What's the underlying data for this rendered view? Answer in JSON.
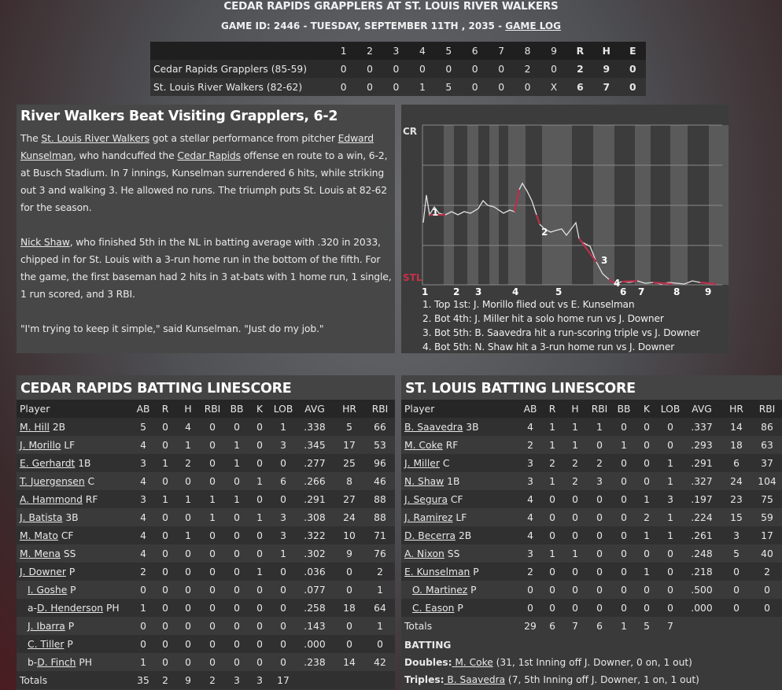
{
  "header": {
    "title": "CEDAR RAPIDS GRAPPLERS AT ST. LOUIS RIVER WALKERS",
    "subtitle": "GAME ID: 2446 - TUESDAY, SEPTEMBER 11TH , 2035 - ",
    "game_log_link": "GAME LOG"
  },
  "linescore": {
    "innings": [
      "1",
      "2",
      "3",
      "4",
      "5",
      "6",
      "7",
      "8",
      "9",
      "R",
      "H",
      "E"
    ],
    "rows": [
      {
        "team": "Cedar Rapids Grapplers (85-59)",
        "cells": [
          "0",
          "0",
          "0",
          "0",
          "0",
          "0",
          "0",
          "2",
          "0",
          "2",
          "9",
          "0"
        ]
      },
      {
        "team": "St. Louis River Walkers (82-62)",
        "cells": [
          "0",
          "0",
          "0",
          "1",
          "5",
          "0",
          "0",
          "0",
          "X",
          "6",
          "7",
          "0"
        ]
      }
    ]
  },
  "recap": {
    "headline": "River Walkers Beat Visiting Grapplers, 6-2",
    "p1": [
      {
        "t": "The "
      },
      {
        "t": "St. Louis River Walkers",
        "u": true
      },
      {
        "t": " got a stellar performance from pitcher "
      },
      {
        "t": "Edward Kunselman",
        "u": true
      },
      {
        "t": ", who handcuffed the "
      },
      {
        "t": "Cedar Rapids",
        "u": true
      },
      {
        "t": " offense en route to a win, 6-2, at Busch Stadium. In 7 innings, Kunselman surrendered 6 hits, while striking out 3 and walking 3. He allowed no runs. The triumph puts St. Louis at 82-62 for the season."
      }
    ],
    "p2": [
      {
        "t": "Nick Shaw",
        "u": true
      },
      {
        "t": ", who finished 5th in the NL in batting average with .320 in 2033, chipped in for St. Louis with a 3-run home run in the bottom of the fifth. For the game, the first baseman had 2 hits in 3 at-bats with 1 home run, 1 single, 1 run scored, and 3 RBI."
      }
    ],
    "p3": [
      {
        "t": "\"I'm trying to keep it simple,\" said Kunselman. \"Just do my job.\""
      }
    ]
  },
  "win_prob": {
    "top_label": "CR",
    "bottom_label": "STL",
    "innings": [
      "1",
      "2",
      "3",
      "4",
      "5",
      "6",
      "7",
      "8",
      "9"
    ],
    "markers": [
      "1",
      "2",
      "3",
      "4"
    ],
    "colors": {
      "home_line": "#b8304a",
      "away_line": "#e0e0e0"
    },
    "plays": [
      "1. Top 1st: J. Morillo flied out vs E. Kunselman",
      "2. Bot 4th: J. Miller hit a solo home run vs J. Downer",
      "3. Bot 5th: B. Saavedra hit a run-scoring triple vs J. Downer",
      "4. Bot 5th: N. Shaw hit a 3-run home run vs J. Downer"
    ]
  },
  "cr_batting": {
    "title": "CEDAR RAPIDS BATTING LINESCORE",
    "columns": [
      "Player",
      "AB",
      "R",
      "H",
      "RBI",
      "BB",
      "K",
      "LOB",
      "AVG",
      "HR",
      "RBI"
    ],
    "rows": [
      {
        "pre": "",
        "name": "M. Hill",
        "pos": " 2B",
        "ind": 0,
        "s": [
          "5",
          "0",
          "4",
          "0",
          "0",
          "0",
          "1",
          ".338",
          "5",
          "66"
        ]
      },
      {
        "pre": "",
        "name": "J. Morillo",
        "pos": " LF",
        "ind": 0,
        "s": [
          "4",
          "0",
          "1",
          "0",
          "1",
          "0",
          "3",
          ".345",
          "17",
          "53"
        ]
      },
      {
        "pre": "",
        "name": "E. Gerhardt",
        "pos": " 1B",
        "ind": 0,
        "s": [
          "3",
          "1",
          "2",
          "0",
          "1",
          "0",
          "0",
          ".277",
          "25",
          "96"
        ]
      },
      {
        "pre": "",
        "name": "T. Juergensen",
        "pos": " C",
        "ind": 0,
        "s": [
          "4",
          "0",
          "0",
          "0",
          "0",
          "1",
          "6",
          ".266",
          "8",
          "46"
        ]
      },
      {
        "pre": "",
        "name": "A. Hammond",
        "pos": " RF",
        "ind": 0,
        "s": [
          "3",
          "1",
          "1",
          "1",
          "1",
          "0",
          "0",
          ".291",
          "27",
          "88"
        ]
      },
      {
        "pre": "",
        "name": "J. Batista",
        "pos": " 3B",
        "ind": 0,
        "s": [
          "4",
          "0",
          "0",
          "1",
          "0",
          "1",
          "3",
          ".308",
          "24",
          "88"
        ]
      },
      {
        "pre": "",
        "name": "M. Mato",
        "pos": " CF",
        "ind": 0,
        "s": [
          "4",
          "0",
          "1",
          "0",
          "0",
          "0",
          "3",
          ".322",
          "10",
          "71"
        ]
      },
      {
        "pre": "",
        "name": "M. Mena",
        "pos": " SS",
        "ind": 0,
        "s": [
          "4",
          "0",
          "0",
          "0",
          "0",
          "0",
          "1",
          ".302",
          "9",
          "76"
        ]
      },
      {
        "pre": "",
        "name": "J. Downer",
        "pos": " P",
        "ind": 0,
        "s": [
          "2",
          "0",
          "0",
          "0",
          "0",
          "1",
          "0",
          ".036",
          "0",
          "2"
        ]
      },
      {
        "pre": "",
        "name": "I. Goshe",
        "pos": " P",
        "ind": 1,
        "s": [
          "0",
          "0",
          "0",
          "0",
          "0",
          "0",
          "0",
          ".077",
          "0",
          "1"
        ]
      },
      {
        "pre": "a-",
        "name": "D. Henderson",
        "pos": " PH",
        "ind": 1,
        "s": [
          "1",
          "0",
          "0",
          "0",
          "0",
          "0",
          "0",
          ".258",
          "18",
          "64"
        ]
      },
      {
        "pre": "",
        "name": "J. Ibarra",
        "pos": " P",
        "ind": 1,
        "s": [
          "0",
          "0",
          "0",
          "0",
          "0",
          "0",
          "0",
          ".143",
          "0",
          "1"
        ]
      },
      {
        "pre": "",
        "name": "C. Tiller",
        "pos": " P",
        "ind": 1,
        "s": [
          "0",
          "0",
          "0",
          "0",
          "0",
          "0",
          "0",
          ".000",
          "0",
          "0"
        ]
      },
      {
        "pre": "b-",
        "name": "D. Finch",
        "pos": " PH",
        "ind": 1,
        "s": [
          "1",
          "0",
          "0",
          "0",
          "0",
          "0",
          "0",
          ".238",
          "14",
          "42"
        ]
      }
    ],
    "totals": {
      "label": "Totals",
      "s": [
        "35",
        "2",
        "9",
        "2",
        "3",
        "3",
        "17",
        "",
        "",
        ""
      ]
    }
  },
  "stl_batting": {
    "title": "ST. LOUIS BATTING LINESCORE",
    "columns": [
      "Player",
      "AB",
      "R",
      "H",
      "RBI",
      "BB",
      "K",
      "LOB",
      "AVG",
      "HR",
      "RBI"
    ],
    "rows": [
      {
        "pre": "",
        "name": "B. Saavedra",
        "pos": " 3B",
        "ind": 0,
        "s": [
          "4",
          "1",
          "1",
          "1",
          "0",
          "0",
          "0",
          ".337",
          "14",
          "86"
        ]
      },
      {
        "pre": "",
        "name": "M. Coke",
        "pos": " RF",
        "ind": 0,
        "s": [
          "2",
          "1",
          "1",
          "0",
          "1",
          "0",
          "0",
          ".293",
          "18",
          "63"
        ]
      },
      {
        "pre": "",
        "name": "J. Miller",
        "pos": " C",
        "ind": 0,
        "s": [
          "3",
          "2",
          "2",
          "2",
          "0",
          "0",
          "1",
          ".291",
          "6",
          "37"
        ]
      },
      {
        "pre": "",
        "name": "N. Shaw",
        "pos": " 1B",
        "ind": 0,
        "s": [
          "3",
          "1",
          "2",
          "3",
          "0",
          "0",
          "1",
          ".327",
          "24",
          "104"
        ]
      },
      {
        "pre": "",
        "name": "J. Segura",
        "pos": " CF",
        "ind": 0,
        "s": [
          "4",
          "0",
          "0",
          "0",
          "0",
          "1",
          "3",
          ".197",
          "23",
          "75"
        ]
      },
      {
        "pre": "",
        "name": "J. Ramirez",
        "pos": " LF",
        "ind": 0,
        "s": [
          "4",
          "0",
          "0",
          "0",
          "0",
          "2",
          "1",
          ".224",
          "15",
          "59"
        ]
      },
      {
        "pre": "",
        "name": "D. Becerra",
        "pos": " 2B",
        "ind": 0,
        "s": [
          "4",
          "0",
          "0",
          "0",
          "0",
          "1",
          "1",
          ".261",
          "3",
          "17"
        ]
      },
      {
        "pre": "",
        "name": "A. Nixon",
        "pos": " SS",
        "ind": 0,
        "s": [
          "3",
          "1",
          "1",
          "0",
          "0",
          "0",
          "0",
          ".248",
          "5",
          "40"
        ]
      },
      {
        "pre": "",
        "name": "E. Kunselman",
        "pos": " P",
        "ind": 0,
        "s": [
          "2",
          "0",
          "0",
          "0",
          "0",
          "1",
          "0",
          ".218",
          "0",
          "2"
        ]
      },
      {
        "pre": "",
        "name": "O. Martinez",
        "pos": " P",
        "ind": 1,
        "s": [
          "0",
          "0",
          "0",
          "0",
          "0",
          "0",
          "0",
          ".500",
          "0",
          "0"
        ]
      },
      {
        "pre": "",
        "name": "C. Eason",
        "pos": " P",
        "ind": 1,
        "s": [
          "0",
          "0",
          "0",
          "0",
          "0",
          "0",
          "0",
          ".000",
          "0",
          "0"
        ]
      }
    ],
    "totals": {
      "label": "Totals",
      "s": [
        "29",
        "6",
        "7",
        "6",
        "1",
        "5",
        "7",
        "",
        "",
        ""
      ]
    },
    "notes_heading": "BATTING",
    "notes": [
      {
        "label": "Doubles:",
        "name": "M. Coke",
        "detail": " (31, 1st Inning off J. Downer, 0 on, 1 out)"
      },
      {
        "label": "Triples:",
        "name": "B. Saavedra",
        "detail": " (7, 5th Inning off J. Downer, 1 on, 1 out)"
      }
    ]
  }
}
